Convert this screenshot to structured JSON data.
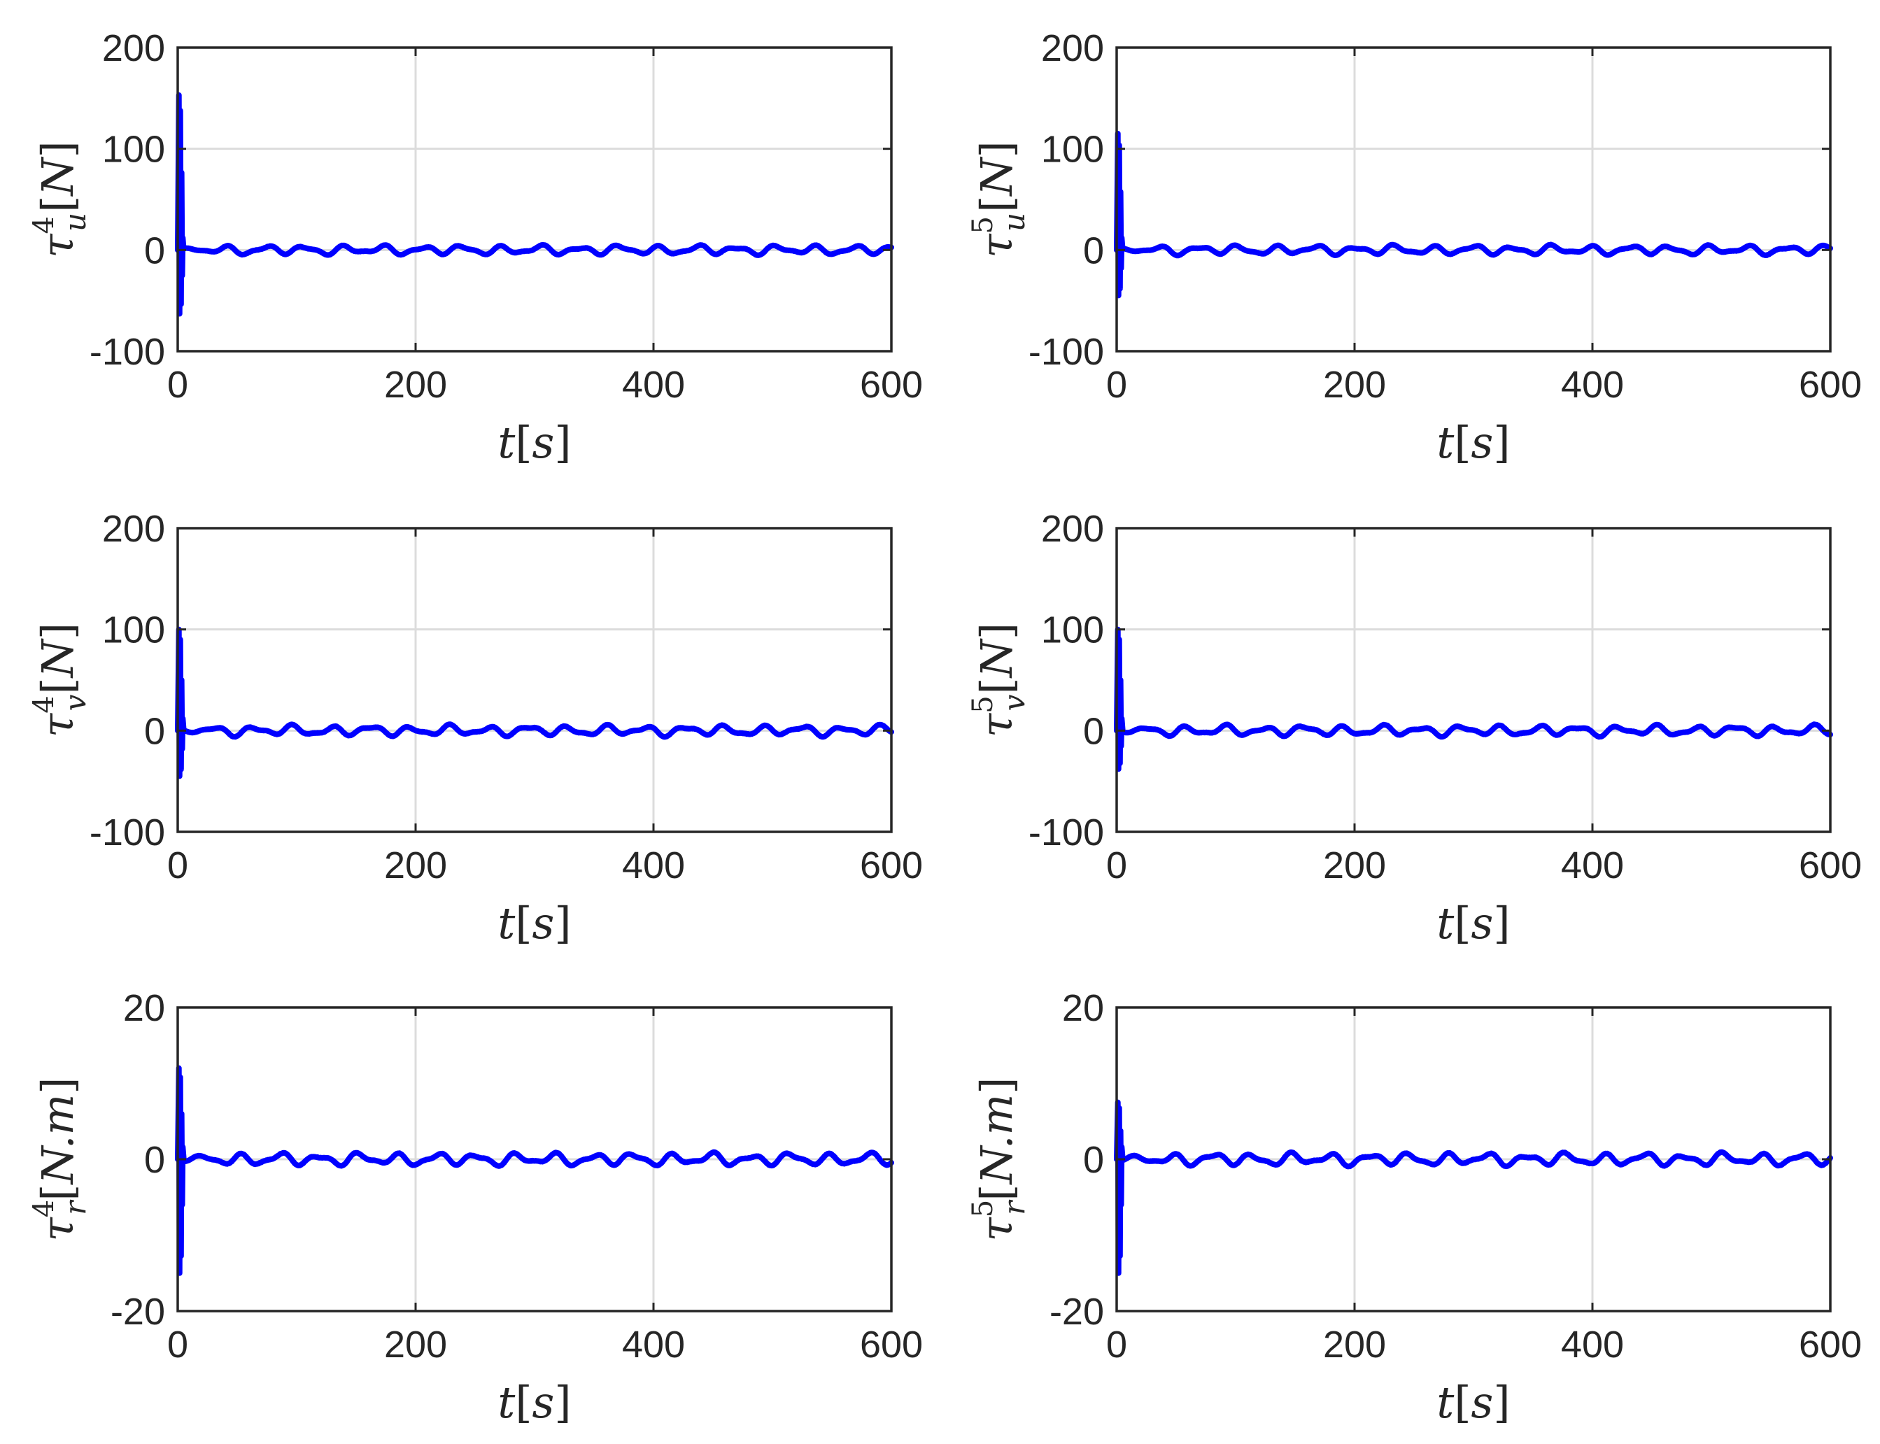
{
  "chart_data": [
    {
      "type": "line",
      "panel": "row1-col1",
      "ylabel": {
        "sym": "τ",
        "sup": "4",
        "sub": "u",
        "unit": "N"
      },
      "xlabel": {
        "sym": "t",
        "unit": "s"
      },
      "xlim": [
        0,
        600
      ],
      "ylim": [
        -100,
        200
      ],
      "xticks": [
        0,
        200,
        400,
        600
      ],
      "yticks": [
        -100,
        0,
        100,
        200
      ],
      "grid": true,
      "transient": {
        "max": 153,
        "min": -63,
        "end_t": 5
      },
      "steady": {
        "amplitude": 4.5
      },
      "series": [
        {
          "color": "#0000ff"
        }
      ]
    },
    {
      "type": "line",
      "panel": "row1-col2",
      "ylabel": {
        "sym": "τ",
        "sup": "5",
        "sub": "u",
        "unit": "N"
      },
      "xlabel": {
        "sym": "t",
        "unit": "s"
      },
      "xlim": [
        0,
        600
      ],
      "ylim": [
        -100,
        200
      ],
      "xticks": [
        0,
        200,
        400,
        600
      ],
      "yticks": [
        -100,
        0,
        100,
        200
      ],
      "grid": true,
      "transient": {
        "max": 115,
        "min": -45,
        "end_t": 5
      },
      "steady": {
        "amplitude": 4.5
      },
      "series": [
        {
          "color": "#0000ff"
        }
      ]
    },
    {
      "type": "line",
      "panel": "row2-col1",
      "ylabel": {
        "sym": "τ",
        "sup": "4",
        "sub": "v",
        "unit": "N"
      },
      "xlabel": {
        "sym": "t",
        "unit": "s"
      },
      "xlim": [
        0,
        600
      ],
      "ylim": [
        -100,
        200
      ],
      "xticks": [
        0,
        200,
        400,
        600
      ],
      "yticks": [
        -100,
        0,
        100,
        200
      ],
      "grid": true,
      "transient": {
        "max": 100,
        "min": -45,
        "end_t": 5
      },
      "steady": {
        "amplitude": 5
      },
      "series": [
        {
          "color": "#0000ff"
        }
      ]
    },
    {
      "type": "line",
      "panel": "row2-col2",
      "ylabel": {
        "sym": "τ",
        "sup": "5",
        "sub": "v",
        "unit": "N"
      },
      "xlabel": {
        "sym": "t",
        "unit": "s"
      },
      "xlim": [
        0,
        600
      ],
      "ylim": [
        -100,
        200
      ],
      "xticks": [
        0,
        200,
        400,
        600
      ],
      "yticks": [
        -100,
        0,
        100,
        200
      ],
      "grid": true,
      "transient": {
        "max": 100,
        "min": -38,
        "end_t": 5
      },
      "steady": {
        "amplitude": 5
      },
      "series": [
        {
          "color": "#0000ff"
        }
      ]
    },
    {
      "type": "line",
      "panel": "row3-col1",
      "ylabel": {
        "sym": "τ",
        "sup": "4",
        "sub": "r",
        "unit": "N.m"
      },
      "xlabel": {
        "sym": "t",
        "unit": "s"
      },
      "xlim": [
        0,
        600
      ],
      "ylim": [
        -20,
        20
      ],
      "xticks": [
        0,
        200,
        400,
        600
      ],
      "yticks": [
        -20,
        0,
        20
      ],
      "grid": true,
      "transient": {
        "max": 12,
        "min": -15,
        "end_t": 5
      },
      "steady": {
        "amplitude": 0.8
      },
      "series": [
        {
          "color": "#0000ff"
        }
      ]
    },
    {
      "type": "line",
      "panel": "row3-col2",
      "ylabel": {
        "sym": "τ",
        "sup": "5",
        "sub": "r",
        "unit": "N.m"
      },
      "xlabel": {
        "sym": "t",
        "unit": "s"
      },
      "xlim": [
        0,
        600
      ],
      "ylim": [
        -20,
        20
      ],
      "xticks": [
        0,
        200,
        400,
        600
      ],
      "yticks": [
        -20,
        0,
        20
      ],
      "grid": true,
      "transient": {
        "max": 7.5,
        "min": -15,
        "end_t": 5
      },
      "steady": {
        "amplitude": 0.8
      },
      "series": [
        {
          "color": "#0000ff"
        }
      ]
    }
  ]
}
